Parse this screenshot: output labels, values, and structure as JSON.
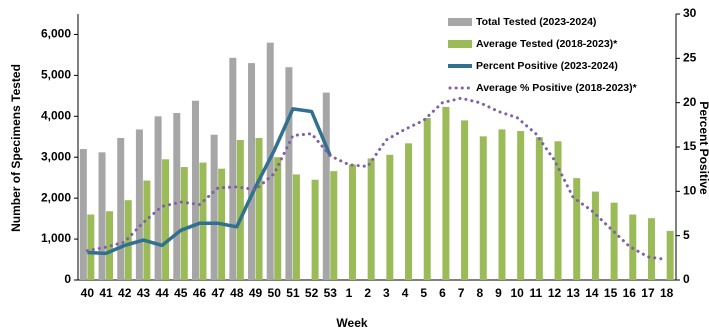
{
  "chart_data": {
    "type": "bar-line",
    "x_label": "Week",
    "y_label": "Number of Specimens Tested",
    "y2_label": "Percent Positive",
    "categories": [
      "40",
      "41",
      "42",
      "43",
      "44",
      "45",
      "46",
      "47",
      "48",
      "49",
      "50",
      "51",
      "52",
      "53",
      "1",
      "2",
      "3",
      "4",
      "5",
      "6",
      "7",
      "8",
      "9",
      "10",
      "11",
      "12",
      "13",
      "14",
      "15",
      "16",
      "17",
      "18"
    ],
    "series": [
      {
        "name": "Total Tested (2023-2024)",
        "color": "#a6a6a6",
        "kind": "bar",
        "values": [
          3200,
          3120,
          3470,
          3680,
          4000,
          4080,
          4380,
          3550,
          5430,
          5300,
          5800,
          5200,
          null,
          4580,
          null,
          null,
          null,
          null,
          null,
          null,
          null,
          null,
          null,
          null,
          null,
          null,
          null,
          null,
          null,
          null,
          null,
          null
        ]
      },
      {
        "name": "Average Tested (2018-2023)*",
        "color": "#9bbb59",
        "kind": "bar",
        "values": [
          1600,
          1680,
          1950,
          2430,
          2950,
          2760,
          2870,
          2720,
          3420,
          3470,
          3000,
          2580,
          2450,
          2660,
          2820,
          2970,
          3060,
          3340,
          3960,
          4230,
          3900,
          3510,
          3680,
          3640,
          3490,
          3390,
          2490,
          2160,
          1890,
          1600,
          1510,
          1200
        ]
      },
      {
        "name": "Percent Positive (2023-2024)",
        "color": "#31708f",
        "kind": "line",
        "axis": "y2",
        "values": [
          3.1,
          3.0,
          3.9,
          4.5,
          3.9,
          5.6,
          6.4,
          6.4,
          6.0,
          10.5,
          14.6,
          19.3,
          19.0,
          14.0,
          null,
          null,
          null,
          null,
          null,
          null,
          null,
          null,
          null,
          null,
          null,
          null,
          null,
          null,
          null,
          null,
          null,
          null
        ]
      },
      {
        "name": "Average % Positive (2018-2023)*",
        "color": "#7f5fa8",
        "kind": "dotted",
        "axis": "y2",
        "values": [
          3.3,
          3.7,
          4.3,
          6.5,
          8.3,
          8.8,
          8.5,
          10.4,
          10.5,
          10.2,
          12.0,
          16.3,
          16.5,
          14.0,
          13.0,
          12.8,
          15.8,
          17.0,
          18.0,
          20.0,
          20.5,
          20.0,
          19.0,
          18.3,
          16.5,
          13.5,
          9.3,
          7.8,
          5.8,
          3.8,
          2.6,
          2.3
        ]
      }
    ],
    "ylim": [
      0,
      6500
    ],
    "yticks": [
      0,
      {
        "value": 1000,
        "label": "1,000"
      },
      {
        "value": 2000,
        "label": "2,000"
      },
      {
        "value": 3000,
        "label": "3,000"
      },
      {
        "value": 4000,
        "label": "4,000"
      },
      {
        "value": 5000,
        "label": "5,000"
      },
      {
        "value": 6000,
        "label": "6,000"
      }
    ],
    "y2lim": [
      0,
      30
    ],
    "y2ticks": [
      0,
      5,
      10,
      15,
      20,
      25,
      30
    ],
    "grid": false,
    "legend": "upper-right"
  }
}
